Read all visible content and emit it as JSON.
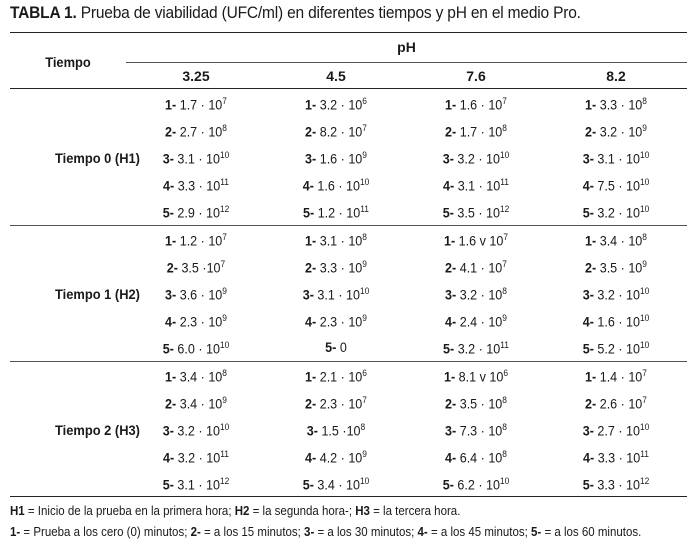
{
  "caption": {
    "label": "TABLA 1.",
    "text": "Prueba de viabilidad (UFC/ml) en diferentes tiempos y pH en el medio Pro."
  },
  "header": {
    "tiempo": "Tiempo",
    "ph": "pH",
    "columns": [
      "3.25",
      "4.5",
      "7.6",
      "8.2"
    ]
  },
  "groups": [
    {
      "label": "Tiempo 0 (H1)",
      "rows": [
        [
          {
            "n": "1-",
            "v": "1.7 · 10",
            "e": "7"
          },
          {
            "n": "1-",
            "v": "3.2 · 10",
            "e": "6"
          },
          {
            "n": "1-",
            "v": "1.6 · 10",
            "e": "7"
          },
          {
            "n": "1-",
            "v": "3.3 · 10",
            "e": "8"
          }
        ],
        [
          {
            "n": "2-",
            "v": "2.7 · 10",
            "e": "8"
          },
          {
            "n": "2-",
            "v": "8.2 · 10",
            "e": "7"
          },
          {
            "n": "2-",
            "v": "1.7 · 10",
            "e": "8"
          },
          {
            "n": "2-",
            "v": "3.2 · 10",
            "e": "9"
          }
        ],
        [
          {
            "n": "3-",
            "v": "3.1 · 10",
            "e": "10"
          },
          {
            "n": "3-",
            "v": "1.6 · 10",
            "e": "9"
          },
          {
            "n": "3-",
            "v": "3.2 · 10",
            "e": "10"
          },
          {
            "n": "3-",
            "v": "3.1 · 10",
            "e": "10"
          }
        ],
        [
          {
            "n": "4-",
            "v": "3.3 · 10",
            "e": "11"
          },
          {
            "n": "4-",
            "v": "1.6 · 10",
            "e": "10"
          },
          {
            "n": "4-",
            "v": "3.1 · 10",
            "e": "11"
          },
          {
            "n": "4-",
            "v": "7.5 · 10",
            "e": "10"
          }
        ],
        [
          {
            "n": "5-",
            "v": "2.9 · 10",
            "e": "12"
          },
          {
            "n": "5-",
            "v": "1.2 · 10",
            "e": "11"
          },
          {
            "n": "5-",
            "v": "3.5 · 10",
            "e": "12"
          },
          {
            "n": "5-",
            "v": "3.2 · 10",
            "e": "10"
          }
        ]
      ]
    },
    {
      "label": "Tiempo 1 (H2)",
      "rows": [
        [
          {
            "n": "1-",
            "v": "1.2 · 10",
            "e": "7"
          },
          {
            "n": "1-",
            "v": "3.1 · 10",
            "e": "8"
          },
          {
            "n": "1-",
            "v": "1.6 v 10",
            "e": "7"
          },
          {
            "n": "1-",
            "v": "3.4 · 10",
            "e": "8"
          }
        ],
        [
          {
            "n": "2-",
            "v": "3.5 ·10",
            "e": "7"
          },
          {
            "n": "2-",
            "v": "3.3 · 10",
            "e": "9"
          },
          {
            "n": "2-",
            "v": "4.1 · 10",
            "e": "7"
          },
          {
            "n": "2-",
            "v": "3.5 · 10",
            "e": "9"
          }
        ],
        [
          {
            "n": "3-",
            "v": "3.6 · 10",
            "e": "9"
          },
          {
            "n": "3-",
            "v": "3.1 · 10",
            "e": "10"
          },
          {
            "n": "3-",
            "v": "3.2 · 10",
            "e": "8"
          },
          {
            "n": "3-",
            "v": "3.2 · 10",
            "e": "10"
          }
        ],
        [
          {
            "n": "4-",
            "v": "2.3 · 10",
            "e": "9"
          },
          {
            "n": "4-",
            "v": "2.3 · 10",
            "e": "9"
          },
          {
            "n": "4-",
            "v": "2.4 · 10",
            "e": "9"
          },
          {
            "n": "4-",
            "v": "1.6 · 10",
            "e": "10"
          }
        ],
        [
          {
            "n": "5-",
            "v": "6.0 · 10",
            "e": "10"
          },
          {
            "n": "5-",
            "v": "0",
            "e": ""
          },
          {
            "n": "5-",
            "v": "3.2 · 10",
            "e": "11"
          },
          {
            "n": "5-",
            "v": "5.2 · 10",
            "e": "10"
          }
        ]
      ]
    },
    {
      "label": "Tiempo 2 (H3)",
      "rows": [
        [
          {
            "n": "1-",
            "v": "3.4 · 10",
            "e": "8"
          },
          {
            "n": "1-",
            "v": "2.1 · 10",
            "e": "6"
          },
          {
            "n": "1-",
            "v": "8.1 v 10",
            "e": "6"
          },
          {
            "n": "1-",
            "v": "1.4 · 10",
            "e": "7"
          }
        ],
        [
          {
            "n": "2-",
            "v": "3.4 · 10",
            "e": "9"
          },
          {
            "n": "2-",
            "v": "2.3 · 10",
            "e": "7"
          },
          {
            "n": "2-",
            "v": "3.5 · 10",
            "e": "8"
          },
          {
            "n": "2-",
            "v": "2.6 · 10",
            "e": "7"
          }
        ],
        [
          {
            "n": "3-",
            "v": "3.2 · 10",
            "e": "10"
          },
          {
            "n": "3-",
            "v": "1.5 ·10",
            "e": "8"
          },
          {
            "n": "3-",
            "v": "7.3 · 10",
            "e": "8"
          },
          {
            "n": "3-",
            "v": "2.7 · 10",
            "e": "10"
          }
        ],
        [
          {
            "n": "4-",
            "v": "3.2 · 10",
            "e": "11"
          },
          {
            "n": "4-",
            "v": "4.2 · 10",
            "e": "9"
          },
          {
            "n": "4-",
            "v": "6.4 · 10",
            "e": "8"
          },
          {
            "n": "4-",
            "v": "3.3 · 10",
            "e": "11"
          }
        ],
        [
          {
            "n": "5-",
            "v": "3.1 · 10",
            "e": "12"
          },
          {
            "n": "5-",
            "v": "3.4 · 10",
            "e": "10"
          },
          {
            "n": "5-",
            "v": "6.2 · 10",
            "e": "10"
          },
          {
            "n": "5-",
            "v": "3.3 · 10",
            "e": "12"
          }
        ]
      ]
    }
  ],
  "footnotes": {
    "line1": [
      {
        "b": "H1",
        "t": " = Inicio de la prueba en la primera hora; "
      },
      {
        "b": "H2",
        "t": " = la segunda hora-; "
      },
      {
        "b": "H3",
        "t": " = la tercera hora."
      }
    ],
    "line2": [
      {
        "b": "1-",
        "t": " = Prueba a los cero (0) minutos; "
      },
      {
        "b": "2-",
        "t": " = a los 15 minutos; "
      },
      {
        "b": "3-",
        "t": " = a los 30 minutos; "
      },
      {
        "b": "4-",
        "t": " = a los 45 minutos; "
      },
      {
        "b": "5-",
        "t": " = a los 60 minutos."
      }
    ]
  }
}
